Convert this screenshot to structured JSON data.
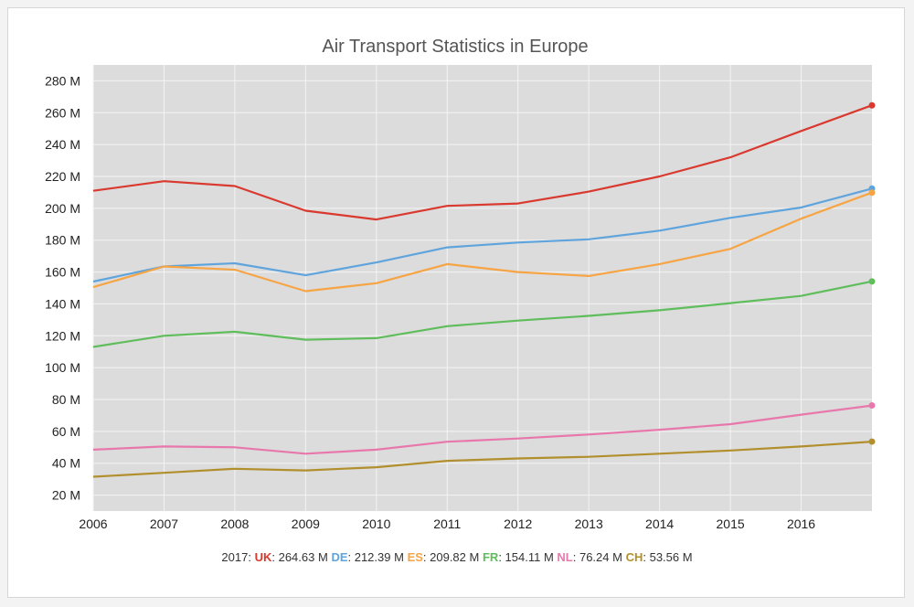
{
  "chart_data": {
    "type": "line",
    "title": "Air Transport Statistics in Europe",
    "xlabel": "",
    "ylabel": "",
    "x": [
      2006,
      2007,
      2008,
      2009,
      2010,
      2011,
      2012,
      2013,
      2014,
      2015,
      2016,
      2017
    ],
    "x_tick_labels": [
      "2006",
      "2007",
      "2008",
      "2009",
      "2010",
      "2011",
      "2012",
      "2013",
      "2014",
      "2015",
      "2016"
    ],
    "y_tick_values": [
      20,
      40,
      60,
      80,
      100,
      120,
      140,
      160,
      180,
      200,
      220,
      240,
      260,
      280
    ],
    "y_tick_labels": [
      "20 M",
      "40 M",
      "60 M",
      "80 M",
      "100 M",
      "120 M",
      "140 M",
      "160 M",
      "180 M",
      "200 M",
      "220 M",
      "240 M",
      "260 M",
      "280 M"
    ],
    "ylim": [
      10,
      290
    ],
    "xlim": [
      2006,
      2017
    ],
    "grid": true,
    "background": "#dcdcdc",
    "series": [
      {
        "name": "UK",
        "color": "#d9392e",
        "values": [
          211,
          217,
          214,
          198.5,
          193,
          201.5,
          203,
          210.5,
          220,
          232,
          248.5,
          264.63
        ]
      },
      {
        "name": "DE",
        "color": "#5fa4dd",
        "values": [
          154,
          163.5,
          165.5,
          158,
          166,
          175.5,
          178.5,
          180.5,
          186,
          194,
          200.5,
          212.39
        ]
      },
      {
        "name": "ES",
        "color": "#f6a444",
        "values": [
          150.5,
          163.5,
          161.5,
          148,
          153,
          165,
          160,
          157.5,
          165,
          174.5,
          193.5,
          209.82
        ]
      },
      {
        "name": "FR",
        "color": "#5fbd5b",
        "values": [
          113,
          120,
          122.5,
          117.5,
          118.5,
          126,
          129.5,
          132.5,
          136,
          140.5,
          145,
          154.11
        ]
      },
      {
        "name": "NL",
        "color": "#e878ac",
        "values": [
          48.5,
          50.5,
          50,
          46,
          48.5,
          53.5,
          55.5,
          58,
          61,
          64.5,
          70.5,
          76.24
        ]
      },
      {
        "name": "CH",
        "color": "#b18f2d",
        "values": [
          31.5,
          34,
          36.5,
          35.5,
          37.5,
          41.5,
          43,
          44,
          46,
          48,
          50.5,
          53.56
        ]
      }
    ]
  },
  "legend": {
    "prefix": "2017:",
    "items": [
      {
        "code": "UK",
        "value": "264.63 M",
        "color": "#d9392e"
      },
      {
        "code": "DE",
        "value": "212.39 M",
        "color": "#5fa4dd"
      },
      {
        "code": "ES",
        "value": "209.82 M",
        "color": "#f6a444"
      },
      {
        "code": "FR",
        "value": "154.11 M",
        "color": "#5fbd5b"
      },
      {
        "code": "NL",
        "value": "76.24 M",
        "color": "#e878ac"
      },
      {
        "code": "CH",
        "value": "53.56 M",
        "color": "#b18f2d"
      }
    ]
  }
}
